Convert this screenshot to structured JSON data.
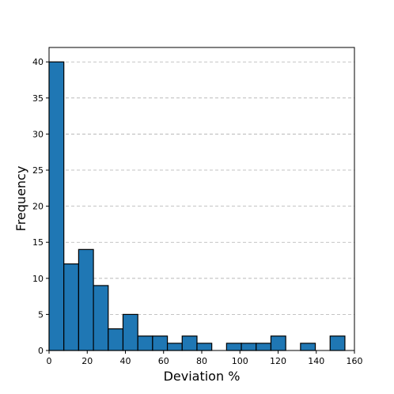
{
  "chart_data": {
    "type": "bar",
    "subtype": "histogram",
    "title": "",
    "xlabel": "Deviation %",
    "ylabel": "Frequency",
    "xlim": [
      0,
      160
    ],
    "ylim": [
      0,
      42
    ],
    "xticks": [
      0,
      20,
      40,
      60,
      80,
      100,
      120,
      140,
      160
    ],
    "yticks": [
      0,
      5,
      10,
      15,
      20,
      25,
      30,
      35,
      40
    ],
    "grid": "horizontal-dashed",
    "bin_edges": [
      0,
      7.75,
      15.5,
      23.25,
      31,
      38.75,
      46.5,
      54.25,
      62,
      69.75,
      77.5,
      85.25,
      93,
      100.75,
      108.5,
      116.25,
      124,
      131.75,
      139.5,
      147.25,
      155
    ],
    "values": [
      40,
      12,
      14,
      9,
      3,
      5,
      2,
      2,
      1,
      2,
      1,
      0,
      1,
      1,
      1,
      2,
      0,
      1,
      0,
      2
    ],
    "bar_color": "#1f77b4",
    "edge_color": "#000000"
  }
}
